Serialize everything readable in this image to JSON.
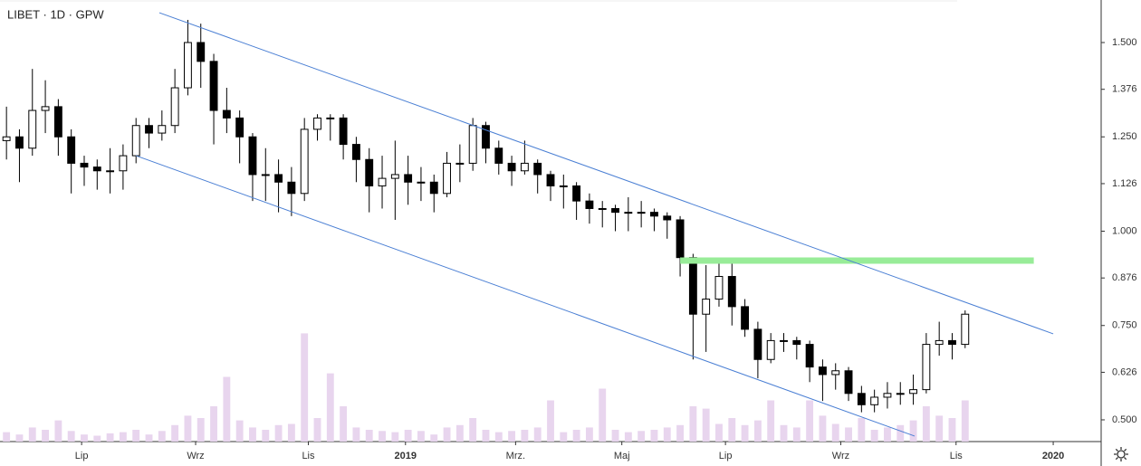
{
  "chart_data": {
    "type": "candlestick",
    "title": "LIBET · 1D · GPW",
    "open": [
      1.24,
      1.25,
      1.22,
      1.32,
      1.33,
      1.25,
      1.18,
      1.17,
      1.16,
      1.16,
      1.2,
      1.28,
      1.26,
      1.28,
      1.38,
      1.5,
      1.45,
      1.32,
      1.3,
      1.25,
      1.15,
      1.15,
      1.13,
      1.1,
      1.27,
      1.3,
      1.3,
      1.23,
      1.19,
      1.12,
      1.14,
      1.15,
      1.13,
      1.13,
      1.1,
      1.18,
      1.18,
      1.28,
      1.22,
      1.18,
      1.16,
      1.18,
      1.15,
      1.12,
      1.12,
      1.08,
      1.06,
      1.06,
      1.05,
      1.05,
      1.05,
      1.04,
      1.03,
      0.93,
      0.78,
      0.82,
      0.88,
      0.8,
      0.74,
      0.66,
      0.71,
      0.71,
      0.7,
      0.64,
      0.62,
      0.63,
      0.57,
      0.54,
      0.56,
      0.57,
      0.57,
      0.58,
      0.7,
      0.71,
      0.7
    ],
    "high": [
      1.33,
      1.27,
      1.43,
      1.4,
      1.35,
      1.27,
      1.2,
      1.19,
      1.22,
      1.23,
      1.3,
      1.3,
      1.32,
      1.43,
      1.56,
      1.55,
      1.47,
      1.38,
      1.32,
      1.26,
      1.22,
      1.19,
      1.17,
      1.3,
      1.31,
      1.31,
      1.31,
      1.25,
      1.22,
      1.2,
      1.24,
      1.2,
      1.17,
      1.15,
      1.21,
      1.23,
      1.3,
      1.29,
      1.24,
      1.2,
      1.24,
      1.19,
      1.16,
      1.15,
      1.13,
      1.1,
      1.08,
      1.07,
      1.09,
      1.08,
      1.06,
      1.05,
      1.04,
      0.94,
      0.91,
      0.92,
      0.93,
      0.82,
      0.76,
      0.73,
      0.73,
      0.72,
      0.71,
      0.66,
      0.65,
      0.64,
      0.59,
      0.58,
      0.6,
      0.6,
      0.62,
      0.73,
      0.76,
      0.73,
      0.79
    ],
    "low": [
      1.19,
      1.13,
      1.2,
      1.26,
      1.2,
      1.1,
      1.12,
      1.11,
      1.1,
      1.11,
      1.18,
      1.22,
      1.24,
      1.26,
      1.36,
      1.38,
      1.23,
      1.26,
      1.18,
      1.08,
      1.08,
      1.05,
      1.04,
      1.08,
      1.24,
      1.24,
      1.19,
      1.13,
      1.05,
      1.06,
      1.03,
      1.07,
      1.08,
      1.05,
      1.09,
      1.13,
      1.16,
      1.18,
      1.15,
      1.12,
      1.15,
      1.1,
      1.08,
      1.06,
      1.03,
      1.02,
      1.01,
      1.0,
      1.0,
      1.01,
      1.0,
      0.98,
      0.88,
      0.66,
      0.68,
      0.8,
      0.75,
      0.72,
      0.61,
      0.65,
      0.68,
      0.66,
      0.6,
      0.55,
      0.58,
      0.55,
      0.52,
      0.52,
      0.53,
      0.54,
      0.54,
      0.57,
      0.67,
      0.66,
      0.69
    ],
    "close": [
      1.25,
      1.22,
      1.32,
      1.33,
      1.25,
      1.18,
      1.17,
      1.16,
      1.16,
      1.2,
      1.28,
      1.26,
      1.28,
      1.38,
      1.5,
      1.45,
      1.32,
      1.3,
      1.25,
      1.15,
      1.15,
      1.13,
      1.1,
      1.27,
      1.3,
      1.3,
      1.23,
      1.19,
      1.12,
      1.14,
      1.15,
      1.13,
      1.13,
      1.1,
      1.18,
      1.18,
      1.28,
      1.22,
      1.18,
      1.16,
      1.18,
      1.15,
      1.12,
      1.12,
      1.08,
      1.06,
      1.06,
      1.05,
      1.05,
      1.05,
      1.04,
      1.03,
      0.93,
      0.78,
      0.82,
      0.88,
      0.8,
      0.74,
      0.66,
      0.71,
      0.71,
      0.7,
      0.64,
      0.62,
      0.63,
      0.57,
      0.54,
      0.56,
      0.57,
      0.57,
      0.58,
      0.7,
      0.71,
      0.7,
      0.78
    ],
    "volume": [
      8,
      6,
      12,
      10,
      18,
      9,
      6,
      5,
      7,
      8,
      10,
      6,
      9,
      14,
      22,
      20,
      30,
      55,
      18,
      12,
      10,
      14,
      15,
      92,
      20,
      58,
      30,
      12,
      10,
      9,
      8,
      10,
      9,
      6,
      12,
      14,
      20,
      10,
      8,
      9,
      10,
      12,
      35,
      8,
      10,
      12,
      45,
      10,
      8,
      9,
      10,
      12,
      14,
      30,
      28,
      15,
      20,
      14,
      18,
      35,
      14,
      12,
      35,
      22,
      15,
      12,
      20,
      10,
      12,
      14,
      18,
      30,
      22,
      20,
      35
    ],
    "vlim": [
      0,
      100
    ],
    "candle_up_color": "#ffffff",
    "candle_down_color": "#000000",
    "volume_color": "#e8d5ee",
    "xlim": [
      -0.5,
      84.5
    ],
    "xticks": [
      {
        "value": 5.8,
        "label": "Lip"
      },
      {
        "value": 14.6,
        "label": "Wrz"
      },
      {
        "value": 23.3,
        "label": "Lis"
      },
      {
        "value": 30.8,
        "label": "2019"
      },
      {
        "value": 39.3,
        "label": "Mrz."
      },
      {
        "value": 47.5,
        "label": "Maj"
      },
      {
        "value": 55.5,
        "label": "Lip"
      },
      {
        "value": 64.4,
        "label": "Wrz"
      },
      {
        "value": 73.3,
        "label": "Lis"
      },
      {
        "value": 80.8,
        "label": "2020"
      }
    ],
    "ylim": [
      0.4424,
      1.6127
    ],
    "yticks": [
      {
        "value": 1.5,
        "label": "1.500"
      },
      {
        "value": 1.376,
        "label": "1.376"
      },
      {
        "value": 1.25,
        "label": "1.250"
      },
      {
        "value": 1.126,
        "label": "1.126"
      },
      {
        "value": 1.0,
        "label": "1.000"
      },
      {
        "value": 0.876,
        "label": "0.876"
      },
      {
        "value": 0.75,
        "label": "0.750"
      },
      {
        "value": 0.626,
        "label": "0.626"
      },
      {
        "value": 0.5,
        "label": "0.500"
      }
    ],
    "trend_lines": [
      {
        "x": [
          11.8,
          80.8
        ],
        "y": [
          1.579,
          0.728
        ],
        "color": "#4a7fd4"
      },
      {
        "x": [
          10.0,
          70.1
        ],
        "y": [
          1.2,
          0.457
        ],
        "color": "#4a7fd4"
      }
    ],
    "level_band": {
      "x": [
        52.0,
        79.3
      ],
      "y": 0.922,
      "color": "#98ec98"
    }
  }
}
